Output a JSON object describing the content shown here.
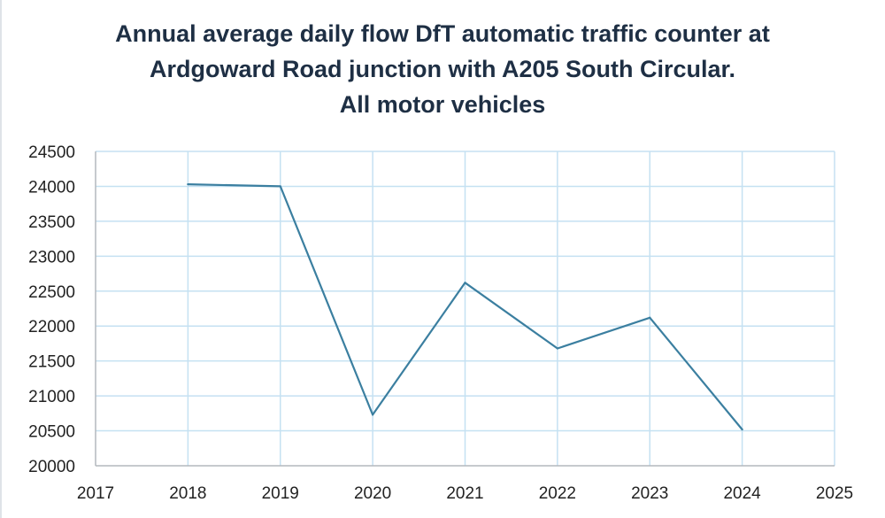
{
  "chart_data": {
    "type": "line",
    "title_lines": [
      "Annual average daily flow DfT automatic traffic counter at",
      "Ardgoward Road junction with A205 South Circular.",
      "All motor vehicles"
    ],
    "xlabel": "",
    "ylabel": "",
    "x": [
      2018,
      2019,
      2020,
      2021,
      2022,
      2023,
      2024
    ],
    "series": [
      {
        "values": [
          24030,
          24000,
          20730,
          22620,
          21680,
          22120,
          20520
        ],
        "color": "#3b7fa0"
      }
    ],
    "xlim": [
      2017,
      2025
    ],
    "ylim": [
      20000,
      24500
    ],
    "x_ticks": [
      "2017",
      "2018",
      "2019",
      "2020",
      "2021",
      "2022",
      "2023",
      "2024",
      "2025"
    ],
    "y_ticks": [
      "24500",
      "24000",
      "23500",
      "23000",
      "22500",
      "22000",
      "21500",
      "21000",
      "20500",
      "20000"
    ],
    "grid": true,
    "grid_color": "#c5e1f2",
    "legend": "none"
  }
}
